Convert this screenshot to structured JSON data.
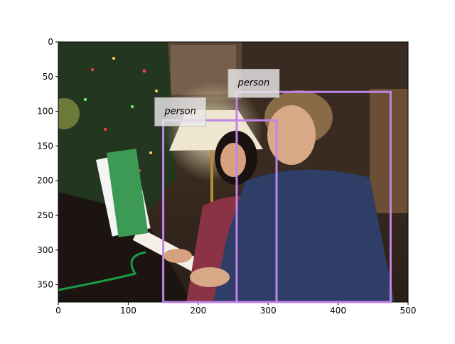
{
  "image": {
    "width": 500,
    "height": 375,
    "x_range": [
      0,
      500
    ],
    "y_range": [
      0,
      375
    ],
    "x_ticks": [
      0,
      100,
      200,
      300,
      400,
      500
    ],
    "y_ticks": [
      0,
      50,
      100,
      150,
      200,
      250,
      300,
      350
    ],
    "axes_visible": true,
    "grid": false
  },
  "detections": [
    {
      "label": "person",
      "box": {
        "x1": 150,
        "y1": 113,
        "x2": 312,
        "y2": 375
      },
      "color": "#c185e8"
    },
    {
      "label": "person",
      "box": {
        "x1": 255,
        "y1": 72,
        "x2": 475,
        "y2": 375
      },
      "color": "#c185e8"
    }
  ],
  "colors": {
    "box_stroke": "#c185e8",
    "label_bg": "#e8e8e8",
    "axis": "#000000"
  }
}
